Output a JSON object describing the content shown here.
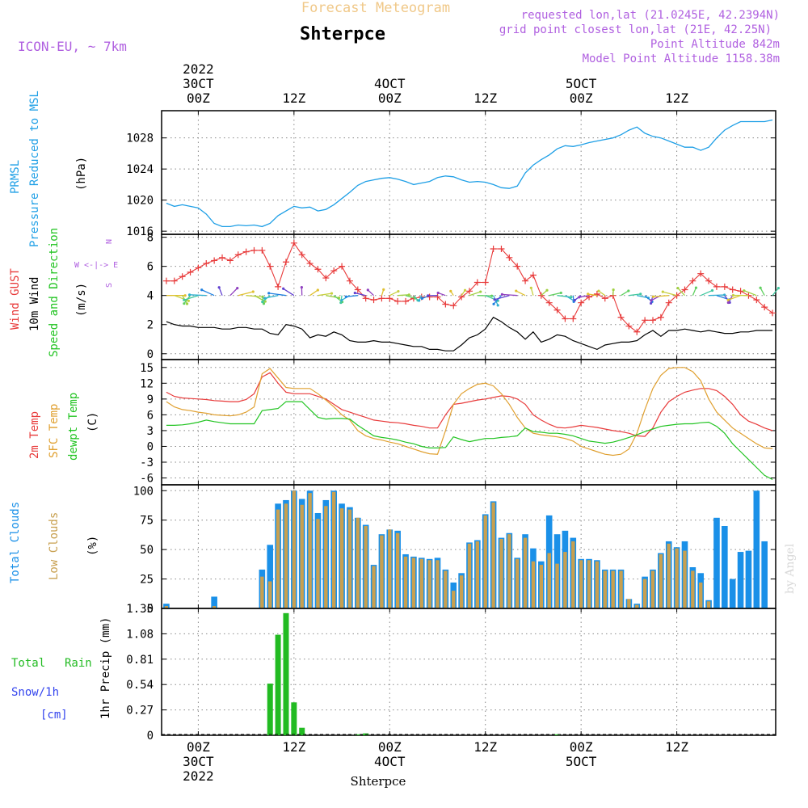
{
  "header": {
    "title": "Forecast Meteogram",
    "station": "Shterpce",
    "model": "ICON-EU,  ~ 7km",
    "requested": "requested lon,lat (21.0245E, 42.2394N)",
    "grid_point": "grid point closest lon,lat (21E, 42.25N)",
    "point_altitude": "Point Altitude 842m",
    "model_altitude": "Model Point Altitude 1158.38m",
    "footer_station": "Shterpce",
    "watermark": "by Angel"
  },
  "time_axis": {
    "top": [
      {
        "line1": "2022",
        "line2": "30CT",
        "line3": "00Z"
      },
      {
        "line1": "",
        "line2": "",
        "line3": "12Z"
      },
      {
        "line1": "",
        "line2": "4OCT",
        "line3": "00Z"
      },
      {
        "line1": "",
        "line2": "",
        "line3": "12Z"
      },
      {
        "line1": "",
        "line2": "5OCT",
        "line3": "00Z"
      },
      {
        "line1": "",
        "line2": "",
        "line3": "12Z"
      }
    ],
    "bottom": [
      {
        "line1": "00Z",
        "line2": "30CT",
        "line3": "2022"
      },
      {
        "line1": "12Z",
        "line2": "",
        "line3": ""
      },
      {
        "line1": "00Z",
        "line2": "4OCT",
        "line3": ""
      },
      {
        "line1": "12Z",
        "line2": "",
        "line3": ""
      },
      {
        "line1": "00Z",
        "line2": "5OCT",
        "line3": ""
      },
      {
        "line1": "12Z",
        "line2": "",
        "line3": ""
      }
    ]
  },
  "colors": {
    "pressure": "#1e9fe6",
    "gust": "#e83a3a",
    "wind": "#000000",
    "temp": "#e83a3a",
    "sfc": "#e0a030",
    "dewpt": "#22c422",
    "total_clouds": "#1a90e8",
    "low_clouds": "#c8a050",
    "rain": "#22bb22",
    "snow": "#3344ee",
    "compass": "#b060e0",
    "header_title": "#f0c888",
    "header_info": "#b060e0"
  },
  "chart_data": [
    {
      "type": "line",
      "title": "",
      "ylabel_lines": [
        "PRMSL",
        "Pressure Reduced to MSL",
        "(hPa)"
      ],
      "ylim": [
        1015.6,
        1031.5
      ],
      "yticks": [
        1016,
        1020,
        1024,
        1028
      ],
      "x_hours": [
        -4,
        -3,
        -2,
        -1,
        0,
        1,
        2,
        3,
        4,
        5,
        6,
        7,
        8,
        9,
        10,
        11,
        12,
        13,
        14,
        15,
        16,
        17,
        18,
        19,
        20,
        21,
        22,
        23,
        24,
        25,
        26,
        27,
        28,
        29,
        30,
        31,
        32,
        33,
        34,
        35,
        36,
        37,
        38,
        39,
        40,
        41,
        42,
        43,
        44,
        45,
        46,
        47,
        48,
        49,
        50,
        51,
        52,
        53,
        54,
        55,
        56,
        57,
        58,
        59,
        60,
        61,
        62,
        63,
        64,
        65,
        66,
        67,
        68,
        69,
        70,
        71,
        72
      ],
      "series": [
        {
          "values": [
            1019.6,
            1019.2,
            1019.4,
            1019.2,
            1019.0,
            1018.2,
            1017.0,
            1016.6,
            1016.6,
            1016.8,
            1016.7,
            1016.8,
            1016.6,
            1017.0,
            1018.0,
            1018.6,
            1019.2,
            1019.0,
            1019.1,
            1018.6,
            1018.8,
            1019.4,
            1020.2,
            1021.0,
            1021.9,
            1022.4,
            1022.6,
            1022.8,
            1022.9,
            1022.7,
            1022.4,
            1022.0,
            1022.2,
            1022.4,
            1022.9,
            1023.1,
            1023.0,
            1022.6,
            1022.3,
            1022.4,
            1022.3,
            1022.0,
            1021.6,
            1021.5,
            1021.8,
            1023.5,
            1024.5,
            1025.2,
            1025.8,
            1026.6,
            1027.0,
            1026.9,
            1027.1,
            1027.4,
            1027.6,
            1027.8,
            1028.0,
            1028.4,
            1029.0,
            1029.4,
            1028.6,
            1028.2,
            1028.0,
            1027.6,
            1027.2,
            1026.8,
            1026.8,
            1026.4,
            1026.8,
            1028.0,
            1029.0,
            1029.6,
            1030.1,
            1030.1,
            1030.1,
            1030.1,
            1030.3
          ]
        }
      ]
    },
    {
      "type": "line",
      "ylabel_lines": [
        "Wind GUST",
        "10m Wind",
        "Speed and Direction",
        "(m/s)"
      ],
      "compass_label": "W <-|-> E",
      "compass_n": "N",
      "compass_s": "S",
      "ylim": [
        -0.4,
        8.2
      ],
      "yticks": [
        0,
        2,
        4,
        6,
        8
      ],
      "x_hours": [
        -4,
        -3,
        -2,
        -1,
        0,
        1,
        2,
        3,
        4,
        5,
        6,
        7,
        8,
        9,
        10,
        11,
        12,
        13,
        14,
        15,
        16,
        17,
        18,
        19,
        20,
        21,
        22,
        23,
        24,
        25,
        26,
        27,
        28,
        29,
        30,
        31,
        32,
        33,
        34,
        35,
        36,
        37,
        38,
        39,
        40,
        41,
        42,
        43,
        44,
        45,
        46,
        47,
        48,
        49,
        50,
        51,
        52,
        53,
        54,
        55,
        56,
        57,
        58,
        59,
        60,
        61,
        62,
        63,
        64,
        65,
        66,
        67,
        68,
        69,
        70,
        71,
        72
      ],
      "series": [
        {
          "name": "Wind GUST",
          "values": [
            5.0,
            5.0,
            5.3,
            5.6,
            5.9,
            6.2,
            6.4,
            6.6,
            6.4,
            6.8,
            7.0,
            7.1,
            7.1,
            6.0,
            4.6,
            6.3,
            7.6,
            6.8,
            6.2,
            5.8,
            5.2,
            5.7,
            6.0,
            5.0,
            4.4,
            3.8,
            3.7,
            3.8,
            3.8,
            3.6,
            3.6,
            3.8,
            3.9,
            3.9,
            3.9,
            3.4,
            3.3,
            3.9,
            4.3,
            4.9,
            4.9,
            7.2,
            7.2,
            6.6,
            6.0,
            5.0,
            5.4,
            4.0,
            3.5,
            3.0,
            2.4,
            2.4,
            3.5,
            3.9,
            4.1,
            3.8,
            4.0,
            2.5,
            1.9,
            1.5,
            2.3,
            2.3,
            2.5,
            3.5,
            4.0,
            4.4,
            5.0,
            5.5,
            5.0,
            4.6,
            4.6,
            4.4,
            4.3,
            4.0,
            3.7,
            3.2,
            2.8
          ]
        },
        {
          "name": "10m Wind",
          "values": [
            2.2,
            2.0,
            1.9,
            1.9,
            1.8,
            1.8,
            1.8,
            1.7,
            1.7,
            1.8,
            1.8,
            1.7,
            1.7,
            1.4,
            1.3,
            2.0,
            1.9,
            1.7,
            1.1,
            1.3,
            1.2,
            1.5,
            1.3,
            0.9,
            0.8,
            0.8,
            0.9,
            0.8,
            0.8,
            0.7,
            0.6,
            0.5,
            0.5,
            0.3,
            0.3,
            0.2,
            0.2,
            0.6,
            1.1,
            1.3,
            1.7,
            2.5,
            2.2,
            1.8,
            1.5,
            1.0,
            1.5,
            0.8,
            1.0,
            1.3,
            1.2,
            0.9,
            0.7,
            0.5,
            0.3,
            0.6,
            0.7,
            0.8,
            0.8,
            0.9,
            1.3,
            1.6,
            1.2,
            1.6,
            1.6,
            1.7,
            1.6,
            1.5,
            1.6,
            1.5,
            1.4,
            1.4,
            1.5,
            1.5,
            1.6,
            1.6,
            1.6
          ]
        }
      ]
    },
    {
      "type": "line",
      "ylabel_lines": [
        "2m Temp",
        "SFC Temp",
        "dewpt Temp",
        "(C)"
      ],
      "ylim": [
        -7.3,
        16.5
      ],
      "yticks": [
        -6,
        -3,
        0,
        3,
        6,
        9,
        12,
        15
      ],
      "x_hours": [
        -4,
        -3,
        -2,
        -1,
        0,
        1,
        2,
        3,
        4,
        5,
        6,
        7,
        8,
        9,
        10,
        11,
        12,
        13,
        14,
        15,
        16,
        17,
        18,
        19,
        20,
        21,
        22,
        23,
        24,
        25,
        26,
        27,
        28,
        29,
        30,
        31,
        32,
        33,
        34,
        35,
        36,
        37,
        38,
        39,
        40,
        41,
        42,
        43,
        44,
        45,
        46,
        47,
        48,
        49,
        50,
        51,
        52,
        53,
        54,
        55,
        56,
        57,
        58,
        59,
        60,
        61,
        62,
        63,
        64,
        65,
        66,
        67,
        68,
        69,
        70,
        71,
        72
      ],
      "series": [
        {
          "name": "2m Temp",
          "values": [
            10.3,
            9.5,
            9.2,
            9.1,
            9.0,
            8.9,
            8.7,
            8.6,
            8.5,
            8.5,
            8.9,
            10.0,
            13.2,
            14.0,
            12.0,
            10.3,
            10.0,
            10.0,
            10.0,
            9.5,
            9.0,
            8.0,
            7.0,
            6.5,
            6.0,
            5.5,
            5.0,
            4.8,
            4.6,
            4.5,
            4.3,
            4.0,
            3.8,
            3.5,
            3.5,
            6.0,
            8.0,
            8.2,
            8.5,
            8.8,
            9.0,
            9.3,
            9.6,
            9.5,
            9.0,
            8.0,
            6.0,
            5.0,
            4.2,
            3.6,
            3.5,
            3.7,
            4.0,
            3.8,
            3.6,
            3.3,
            3.0,
            2.8,
            2.5,
            2.0,
            1.9,
            3.5,
            6.5,
            8.5,
            9.5,
            10.3,
            10.7,
            11.0,
            11.0,
            10.6,
            9.5,
            8.0,
            6.0,
            4.8,
            4.2,
            3.5,
            3.0
          ]
        },
        {
          "name": "SFC Temp",
          "values": [
            8.5,
            7.5,
            7.0,
            6.8,
            6.5,
            6.3,
            6.0,
            5.9,
            5.8,
            6.0,
            6.5,
            7.5,
            13.8,
            14.8,
            13.0,
            11.2,
            11.0,
            11.0,
            11.0,
            10.0,
            8.8,
            7.5,
            6.0,
            5.0,
            3.0,
            2.0,
            1.5,
            1.2,
            0.8,
            0.5,
            0.0,
            -0.5,
            -1.0,
            -1.4,
            -1.5,
            3.0,
            8.0,
            10.0,
            11.0,
            11.8,
            12.0,
            11.5,
            10.0,
            8.0,
            5.5,
            3.5,
            2.5,
            2.2,
            2.0,
            1.8,
            1.5,
            1.0,
            0.0,
            -0.5,
            -1.0,
            -1.5,
            -1.7,
            -1.5,
            -0.5,
            2.5,
            7.0,
            11.0,
            13.5,
            14.8,
            15.0,
            15.0,
            14.2,
            12.5,
            9.0,
            6.5,
            5.0,
            3.5,
            2.5,
            1.5,
            0.5,
            -0.3,
            -0.4
          ]
        },
        {
          "name": "dewpt Temp",
          "values": [
            4.0,
            4.0,
            4.1,
            4.3,
            4.6,
            5.0,
            4.7,
            4.5,
            4.3,
            4.3,
            4.3,
            4.3,
            6.8,
            7.0,
            7.2,
            8.5,
            8.5,
            8.5,
            7.0,
            5.5,
            5.2,
            5.3,
            5.3,
            5.2,
            4.0,
            3.0,
            2.0,
            1.7,
            1.5,
            1.2,
            0.8,
            0.5,
            0.0,
            -0.3,
            -0.3,
            -0.2,
            1.8,
            1.3,
            0.9,
            1.2,
            1.5,
            1.5,
            1.7,
            1.8,
            2.0,
            3.5,
            2.8,
            2.7,
            2.5,
            2.5,
            2.3,
            2.0,
            1.5,
            1.0,
            0.8,
            0.6,
            0.8,
            1.2,
            1.7,
            2.2,
            2.8,
            3.3,
            3.8,
            4.0,
            4.2,
            4.3,
            4.3,
            4.5,
            4.6,
            3.8,
            2.5,
            0.5,
            -1.0,
            -2.5,
            -4.0,
            -5.5,
            -6.3
          ]
        }
      ]
    },
    {
      "type": "bar",
      "ylabel_lines": [
        "Total Clouds",
        "Low Clouds",
        "(%)"
      ],
      "ylim": [
        0,
        105
      ],
      "yticks": [
        0,
        25,
        50,
        75,
        100
      ],
      "x_hours": [
        -4,
        -3,
        -2,
        -1,
        0,
        1,
        2,
        3,
        4,
        5,
        6,
        7,
        8,
        9,
        10,
        11,
        12,
        13,
        14,
        15,
        16,
        17,
        18,
        19,
        20,
        21,
        22,
        23,
        24,
        25,
        26,
        27,
        28,
        29,
        30,
        31,
        32,
        33,
        34,
        35,
        36,
        37,
        38,
        39,
        40,
        41,
        42,
        43,
        44,
        45,
        46,
        47,
        48,
        49,
        50,
        51,
        52,
        53,
        54,
        55,
        56,
        57,
        58,
        59,
        60,
        61,
        62,
        63,
        64,
        65,
        66,
        67,
        68,
        69,
        70,
        71,
        72
      ],
      "series": [
        {
          "name": "Total Clouds",
          "values": [
            4,
            0,
            0,
            0,
            0,
            0,
            10,
            0,
            0,
            0,
            0,
            0,
            33,
            54,
            89,
            92,
            100,
            93,
            100,
            81,
            92,
            100,
            89,
            86,
            77,
            71,
            37,
            63,
            67,
            66,
            46,
            44,
            43,
            42,
            43,
            33,
            22,
            30,
            56,
            58,
            80,
            91,
            60,
            64,
            43,
            63,
            51,
            40,
            79,
            63,
            66,
            60,
            42,
            42,
            41,
            33,
            33,
            33,
            8,
            4,
            27,
            33,
            47,
            57,
            52,
            57,
            35,
            30,
            7,
            77,
            70,
            25,
            48,
            49,
            100,
            57,
            0
          ]
        },
        {
          "name": "Low Clouds",
          "values": [
            2,
            0,
            0,
            0,
            0,
            0,
            2,
            0,
            0,
            0,
            0,
            0,
            27,
            23,
            84,
            89,
            100,
            88,
            98,
            76,
            87,
            99,
            85,
            84,
            77,
            70,
            36,
            62,
            67,
            64,
            44,
            43,
            42,
            41,
            41,
            32,
            15,
            28,
            55,
            57,
            79,
            90,
            59,
            63,
            42,
            60,
            40,
            37,
            47,
            38,
            48,
            57,
            41,
            41,
            40,
            32,
            32,
            32,
            8,
            3,
            25,
            32,
            46,
            55,
            51,
            49,
            32,
            22,
            6,
            0,
            0,
            0,
            0,
            0,
            0,
            0,
            0
          ]
        }
      ]
    },
    {
      "type": "bar",
      "ylabel_lines": [
        "1hr Precip (mm)"
      ],
      "left_labels": {
        "total": "Total",
        "rain": "Rain",
        "snow": "Snow/1h",
        "cm": "[cm]"
      },
      "ylim": [
        0,
        1.35
      ],
      "yticks": [
        0,
        0.27,
        0.54,
        0.81,
        1.08,
        1.35
      ],
      "ytick_labels": [
        "0",
        "0.27",
        "0.54",
        "0.81",
        "1.08",
        "1.35"
      ],
      "x_hours": [
        9,
        10,
        11,
        12,
        13,
        14,
        20,
        21,
        45
      ],
      "series": [
        {
          "name": "Rain",
          "values": [
            0.55,
            1.07,
            1.3,
            0.35,
            0.08,
            0.0,
            0.01,
            0.02,
            0.01
          ]
        }
      ]
    }
  ]
}
